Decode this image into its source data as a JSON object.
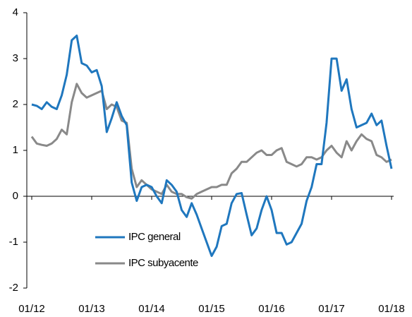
{
  "chart_data": {
    "type": "line",
    "categories": [
      "01/12",
      null,
      null,
      null,
      null,
      null,
      null,
      null,
      null,
      null,
      null,
      null,
      "01/13",
      null,
      null,
      null,
      null,
      null,
      null,
      null,
      null,
      null,
      null,
      null,
      "01/14",
      null,
      null,
      null,
      null,
      null,
      null,
      null,
      null,
      null,
      null,
      null,
      "01/15",
      null,
      null,
      null,
      null,
      null,
      null,
      null,
      null,
      null,
      null,
      null,
      "01/16",
      null,
      null,
      null,
      null,
      null,
      null,
      null,
      null,
      null,
      null,
      null,
      "01/17",
      null,
      null,
      null,
      null,
      null,
      null,
      null,
      null,
      null,
      null,
      null,
      "01/18"
    ],
    "series": [
      {
        "name": "IPC general",
        "color": "#1f77be",
        "values": [
          2.0,
          1.97,
          1.9,
          2.05,
          1.95,
          1.9,
          2.2,
          2.65,
          3.4,
          3.5,
          2.9,
          2.85,
          2.7,
          2.75,
          2.4,
          1.4,
          1.7,
          2.05,
          1.75,
          1.55,
          0.3,
          -0.1,
          0.2,
          0.25,
          0.2,
          0.0,
          -0.15,
          0.35,
          0.25,
          0.1,
          -0.3,
          -0.45,
          -0.15,
          -0.4,
          -0.7,
          -1.0,
          -1.3,
          -1.1,
          -0.65,
          -0.6,
          -0.15,
          0.05,
          0.07,
          -0.4,
          -0.85,
          -0.7,
          -0.3,
          0.0,
          -0.3,
          -0.8,
          -0.8,
          -1.05,
          -1.0,
          -0.8,
          -0.6,
          -0.1,
          0.2,
          0.7,
          0.7,
          1.6,
          3.0,
          3.0,
          2.3,
          2.55,
          1.9,
          1.5,
          1.55,
          1.6,
          1.8,
          1.55,
          1.65,
          1.1,
          0.6
        ]
      },
      {
        "name": "IPC subyacente",
        "color": "#898989",
        "values": [
          1.3,
          1.15,
          1.12,
          1.1,
          1.15,
          1.25,
          1.45,
          1.35,
          2.05,
          2.45,
          2.25,
          2.15,
          2.2,
          2.25,
          2.3,
          1.9,
          2.0,
          1.95,
          1.65,
          1.6,
          0.6,
          0.2,
          0.35,
          0.25,
          0.15,
          0.1,
          0.05,
          0.25,
          0.1,
          0.05,
          0.05,
          -0.02,
          -0.05,
          0.05,
          0.1,
          0.15,
          0.2,
          0.2,
          0.25,
          0.25,
          0.5,
          0.6,
          0.75,
          0.75,
          0.85,
          0.95,
          1.0,
          0.9,
          0.9,
          1.0,
          1.05,
          0.75,
          0.7,
          0.65,
          0.7,
          0.85,
          0.85,
          0.8,
          0.85,
          1.0,
          1.1,
          0.95,
          0.85,
          1.2,
          1.0,
          1.2,
          1.35,
          1.25,
          1.2,
          0.9,
          0.85,
          0.75,
          0.8
        ]
      }
    ],
    "ylim": [
      -2,
      4
    ],
    "yticks": [
      -2,
      -1,
      0,
      1,
      2,
      3,
      4
    ],
    "grid": false,
    "legend": "lower center"
  }
}
